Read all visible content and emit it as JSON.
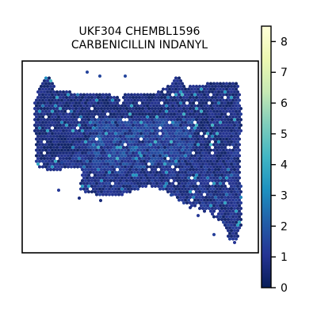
{
  "chart_data": {
    "type": "scatter",
    "title_lines": [
      "UKF304 CHEMBL1596",
      "CARBENICILLIN INDANYL"
    ],
    "xlabel": "",
    "ylabel": "",
    "grid": false,
    "legend": "none",
    "marker": "hexagon",
    "colormap": "YlGnBu",
    "colorbar": {
      "min": 0,
      "max": 8.5,
      "ticks": [
        0,
        1,
        2,
        3,
        4,
        5,
        6,
        7,
        8
      ],
      "tick_labels": [
        "0",
        "1",
        "2",
        "3",
        "4",
        "5",
        "6",
        "7",
        "8"
      ],
      "colors": [
        "#081d58",
        "#253494",
        "#225ea8",
        "#1d91c0",
        "#41b6c4",
        "#7fcdbb",
        "#c7e9b4",
        "#edf8b1",
        "#ffffd9"
      ]
    },
    "description_of_values": "spatial expression spots; most values between 0 and 2, scattered highs up to ~4"
  }
}
